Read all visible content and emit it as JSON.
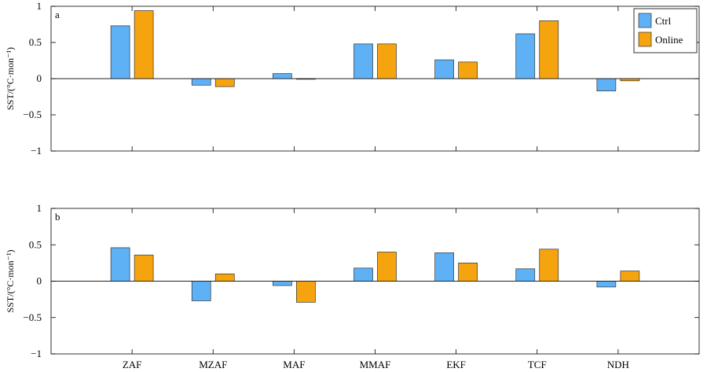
{
  "chart_data": [
    {
      "type": "bar",
      "panel_label": "a",
      "ylabel": "SST/(°C·mon⁻¹)",
      "ylim": [
        -1,
        1
      ],
      "yticks": [
        {
          "value": 1,
          "label": "1"
        },
        {
          "value": 0.5,
          "label": "0.5"
        },
        {
          "value": 0,
          "label": "0"
        },
        {
          "value": -0.5,
          "label": "−0.5"
        },
        {
          "value": -1,
          "label": "−1"
        }
      ],
      "categories": [
        "ZAF",
        "MZAF",
        "MAF",
        "MMAF",
        "EKF",
        "TCF",
        "NDH"
      ],
      "show_category_labels": false,
      "series": [
        {
          "name": "Ctrl",
          "color": "#5fb1f5",
          "values": [
            0.73,
            -0.09,
            0.07,
            0.48,
            0.26,
            0.62,
            -0.17
          ]
        },
        {
          "name": "Online",
          "color": "#f5a30f",
          "values": [
            0.94,
            -0.11,
            0.0,
            0.48,
            0.23,
            0.8,
            -0.03
          ]
        }
      ],
      "legend": {
        "position": "top-right",
        "entries": [
          "Ctrl",
          "Online"
        ]
      },
      "grid": false
    },
    {
      "type": "bar",
      "panel_label": "b",
      "ylabel": "SST/(°C·mon⁻¹)",
      "ylim": [
        -1,
        1
      ],
      "yticks": [
        {
          "value": 1,
          "label": "1"
        },
        {
          "value": 0.5,
          "label": "0.5"
        },
        {
          "value": 0,
          "label": "0"
        },
        {
          "value": -0.5,
          "label": "−0.5"
        },
        {
          "value": -1,
          "label": "−1"
        }
      ],
      "categories": [
        "ZAF",
        "MZAF",
        "MAF",
        "MMAF",
        "EKF",
        "TCF",
        "NDH"
      ],
      "show_category_labels": true,
      "series": [
        {
          "name": "Ctrl",
          "color": "#5fb1f5",
          "values": [
            0.46,
            -0.27,
            -0.06,
            0.18,
            0.39,
            0.17,
            -0.08
          ]
        },
        {
          "name": "Online",
          "color": "#f5a30f",
          "values": [
            0.36,
            0.1,
            -0.29,
            0.4,
            0.25,
            0.44,
            0.14
          ]
        }
      ],
      "legend": null,
      "grid": false
    }
  ]
}
